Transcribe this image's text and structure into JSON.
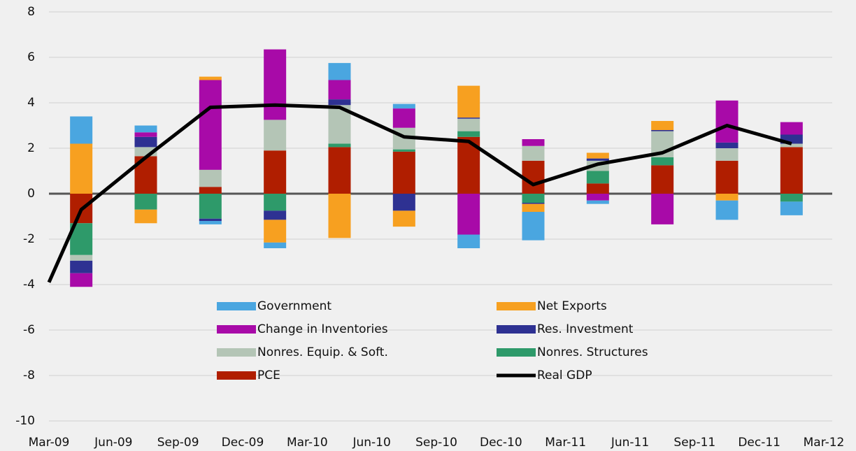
{
  "chart_data": {
    "type": "stacked-bar-line",
    "x": [
      0.5,
      1.5,
      2.5,
      3.5,
      4.5,
      5.5,
      6.5,
      7.5,
      8.5,
      9.5,
      10.5,
      11.5
    ],
    "xlim": [
      0,
      12
    ],
    "xticks": [
      {
        "value": 0,
        "label": "Mar-09"
      },
      {
        "value": 1,
        "label": "Jun-09"
      },
      {
        "value": 2,
        "label": "Sep-09"
      },
      {
        "value": 3,
        "label": "Dec-09"
      },
      {
        "value": 4,
        "label": "Mar-10"
      },
      {
        "value": 5,
        "label": "Jun-10"
      },
      {
        "value": 6,
        "label": "Sep-10"
      },
      {
        "value": 7,
        "label": "Dec-10"
      },
      {
        "value": 8,
        "label": "Mar-11"
      },
      {
        "value": 9,
        "label": "Jun-11"
      },
      {
        "value": 10,
        "label": "Sep-11"
      },
      {
        "value": 11,
        "label": "Dec-11"
      },
      {
        "value": 12,
        "label": "Mar-12"
      }
    ],
    "ylim": [
      -10,
      8
    ],
    "yticks": [
      -10,
      -8,
      -6,
      -4,
      -2,
      0,
      2,
      4,
      6,
      8
    ],
    "grid": true,
    "series": [
      {
        "name": "Government",
        "color": "#4aa6e0",
        "values": [
          1.2,
          0.3,
          -0.15,
          -0.25,
          0.75,
          0.2,
          -0.6,
          -1.25,
          -0.15,
          0,
          -0.85,
          -0.6
        ]
      },
      {
        "name": "Net Exports",
        "color": "#f7a020",
        "values": [
          2.2,
          -0.6,
          0.15,
          -1.0,
          -1.95,
          -0.7,
          1.4,
          -0.35,
          0.25,
          0.4,
          -0.3,
          0
        ]
      },
      {
        "name": "Change in Inventories",
        "color": "#a80aa8",
        "values": [
          -0.6,
          0.2,
          3.95,
          3.1,
          0.85,
          0.85,
          -1.8,
          0.3,
          -0.3,
          -1.35,
          1.85,
          0.55
        ]
      },
      {
        "name": "Res. Investment",
        "color": "#2e3192",
        "values": [
          -0.55,
          0.45,
          -0.1,
          -0.4,
          0.25,
          -0.75,
          0.05,
          -0.05,
          0.1,
          0.05,
          0.25,
          0.4
        ]
      },
      {
        "name": "Nonres. Equip. & Soft.",
        "color": "#b4c5b6",
        "values": [
          -0.25,
          0.4,
          0.75,
          1.35,
          1.7,
          0.95,
          0.55,
          0.65,
          0.45,
          1.15,
          0.55,
          0.15
        ]
      },
      {
        "name": "Nonres. Structures",
        "color": "#2e9a6a",
        "values": [
          -1.4,
          -0.7,
          -1.1,
          -0.75,
          0.15,
          0.1,
          0.25,
          -0.4,
          0.55,
          0.35,
          0,
          -0.35
        ]
      },
      {
        "name": "PCE",
        "color": "#b01e00",
        "values": [
          -1.3,
          1.65,
          0.3,
          1.9,
          2.05,
          1.85,
          2.5,
          1.45,
          0.45,
          1.25,
          1.45,
          2.05
        ]
      },
      {
        "name": "Real GDP",
        "color": "#000000",
        "kind": "line",
        "x": [
          0,
          0.5,
          1.5,
          2.5,
          3.5,
          4.5,
          5.5,
          6.5,
          7.5,
          8.5,
          9.5,
          10.5,
          11.5
        ],
        "values": [
          -3.9,
          -0.7,
          1.6,
          3.8,
          3.9,
          3.8,
          2.5,
          2.3,
          0.4,
          1.3,
          1.8,
          3.0,
          2.2
        ]
      }
    ]
  }
}
